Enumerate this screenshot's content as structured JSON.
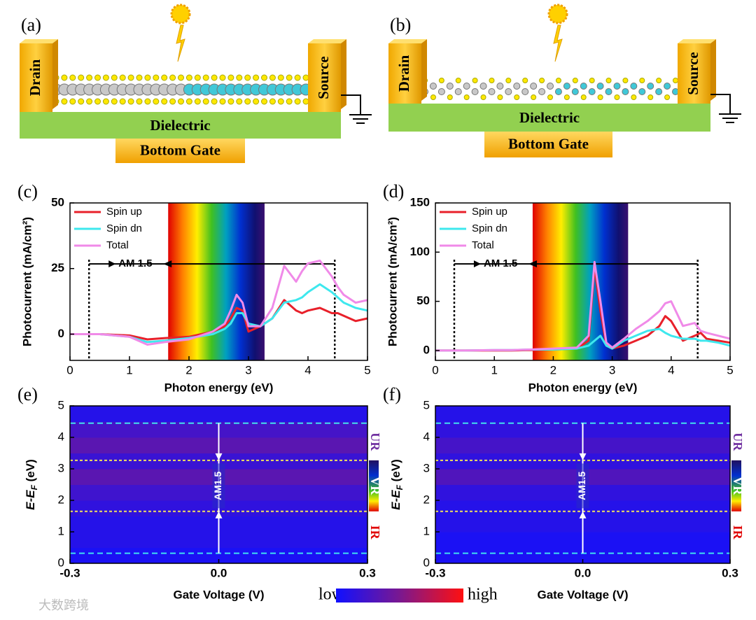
{
  "diagrams": [
    {
      "label": "(a)",
      "drain": "Drain",
      "source": "Source",
      "dielectric": "Dielectric",
      "gate": "Bottom Gate"
    },
    {
      "label": "(b)",
      "drain": "Drain",
      "source": "Source",
      "dielectric": "Dielectric",
      "gate": "Bottom Gate"
    }
  ],
  "chart_data": [
    {
      "type": "line",
      "label": "(c)",
      "xlabel": "Photon energy (eV)",
      "ylabel": "Photocurrent (mA/cm²)",
      "legend": "upper left",
      "annotation": "AM 1.5",
      "markers": [
        0.32,
        4.45
      ],
      "spectrum": [
        1.65,
        3.27
      ],
      "xlim": [
        0,
        5
      ],
      "xticks": [
        0,
        1,
        2,
        3,
        4,
        5
      ],
      "ylim": [
        -10,
        50
      ],
      "yticks": [
        0,
        25,
        50
      ],
      "x": [
        0,
        0.5,
        1,
        1.3,
        1.6,
        2,
        2.4,
        2.6,
        2.7,
        2.8,
        2.9,
        3,
        3.2,
        3.4,
        3.6,
        3.8,
        3.9,
        4,
        4.2,
        4.4,
        4.5,
        4.6,
        4.8,
        5
      ],
      "series": [
        {
          "name": "Spin up",
          "color": "#e8202a",
          "values": [
            0,
            0,
            -0.5,
            -2,
            -1.5,
            -1,
            1,
            3,
            6,
            10,
            9,
            1,
            3,
            6,
            13,
            9,
            8,
            9,
            10,
            8,
            8,
            7,
            5,
            6
          ]
        },
        {
          "name": "Spin dn",
          "color": "#3ee8ee",
          "values": [
            0,
            0,
            -1,
            -3,
            -2.5,
            -1.5,
            0,
            2,
            4,
            8,
            8,
            4,
            3,
            6,
            12,
            13,
            14,
            16,
            19,
            16,
            14,
            12,
            10,
            9
          ]
        },
        {
          "name": "Total",
          "color": "#f08ae8",
          "values": [
            0,
            0,
            -1,
            -4,
            -3,
            -2,
            1,
            4,
            9,
            15,
            12,
            3,
            3,
            10,
            26,
            20,
            24,
            27,
            28,
            22,
            18,
            15,
            12,
            13
          ]
        }
      ]
    },
    {
      "type": "line",
      "label": "(d)",
      "xlabel": "Photon energy (eV)",
      "ylabel": "Photocurrent (mA/cm²)",
      "legend": "upper left",
      "annotation": "AM 1.5",
      "markers": [
        0.32,
        4.45
      ],
      "spectrum": [
        1.65,
        3.27
      ],
      "xlim": [
        0,
        5
      ],
      "xticks": [
        0,
        1,
        2,
        3,
        4,
        5
      ],
      "ylim": [
        -10,
        150
      ],
      "yticks": [
        0,
        50,
        100,
        150
      ],
      "x": [
        0,
        0.5,
        1,
        1.3,
        1.6,
        2,
        2.4,
        2.6,
        2.7,
        2.8,
        2.9,
        3,
        3.2,
        3.4,
        3.6,
        3.8,
        3.9,
        4,
        4.2,
        4.4,
        4.5,
        4.6,
        4.8,
        5
      ],
      "series": [
        {
          "name": "Spin up",
          "color": "#e8202a",
          "values": [
            0,
            0,
            0,
            0,
            0.5,
            1,
            2,
            10,
            85,
            40,
            5,
            2,
            5,
            10,
            15,
            25,
            35,
            30,
            10,
            15,
            18,
            12,
            10,
            8
          ]
        },
        {
          "name": "Spin dn",
          "color": "#3ee8ee",
          "values": [
            0,
            0,
            0.5,
            0.5,
            1,
            1,
            2,
            5,
            10,
            15,
            5,
            2,
            10,
            15,
            20,
            22,
            18,
            15,
            12,
            12,
            10,
            10,
            8,
            5
          ]
        },
        {
          "name": "Total",
          "color": "#f08ae8",
          "values": [
            0,
            0,
            0.5,
            0.5,
            1,
            2,
            3,
            15,
            90,
            50,
            8,
            3,
            12,
            22,
            30,
            40,
            48,
            50,
            25,
            28,
            20,
            18,
            15,
            12
          ]
        }
      ]
    },
    {
      "type": "heatmap",
      "label": "(e)",
      "xlabel": "Gate Voltage (V)",
      "ylabel": "E-E",
      "ylabel_sub": "F",
      "ylabel_unit": " (eV)",
      "annotation": "AM1.5",
      "regions": [
        "UR",
        "VR",
        "IR"
      ],
      "lines_cyan": [
        0.32,
        4.45
      ],
      "lines_yellow": [
        1.65,
        3.27
      ],
      "xlim": [
        -0.3,
        0.3
      ],
      "xticks": [
        -0.3,
        {
          "value": 0,
          "label": "0.0"
        },
        0.3
      ],
      "ylim": [
        0,
        5
      ],
      "yticks": [
        0,
        1,
        2,
        3,
        4,
        5
      ],
      "y": [
        0.25,
        0.75,
        1.25,
        1.75,
        2.25,
        2.75,
        3.25,
        3.75,
        4.25,
        4.75
      ],
      "values": [
        0.05,
        0.1,
        0.1,
        0.15,
        0.22,
        0.35,
        0.2,
        0.35,
        0.25,
        0.1
      ]
    },
    {
      "type": "heatmap",
      "label": "(f)",
      "xlabel": "Gate Voltage (V)",
      "ylabel": "E-E",
      "ylabel_sub": "F",
      "ylabel_unit": " (eV)",
      "annotation": "AM1.5",
      "regions": [
        "UR",
        "VR",
        "IR"
      ],
      "lines_cyan": [
        0.32,
        4.45
      ],
      "lines_yellow": [
        1.65,
        3.27
      ],
      "xlim": [
        -0.3,
        0.3
      ],
      "xticks": [
        -0.3,
        {
          "value": 0,
          "label": "0.0"
        },
        0.3
      ],
      "ylim": [
        0,
        5
      ],
      "yticks": [
        0,
        1,
        2,
        3,
        4,
        5
      ],
      "y": [
        0.25,
        0.75,
        1.25,
        1.75,
        2.25,
        2.75,
        3.25,
        3.75,
        4.25,
        4.75
      ],
      "values": [
        0.05,
        0.05,
        0.1,
        0.1,
        0.15,
        0.3,
        0.15,
        0.25,
        0.15,
        0.1
      ]
    }
  ],
  "colorbar": {
    "low": "low",
    "high": "high"
  },
  "watermark": "大数跨境"
}
